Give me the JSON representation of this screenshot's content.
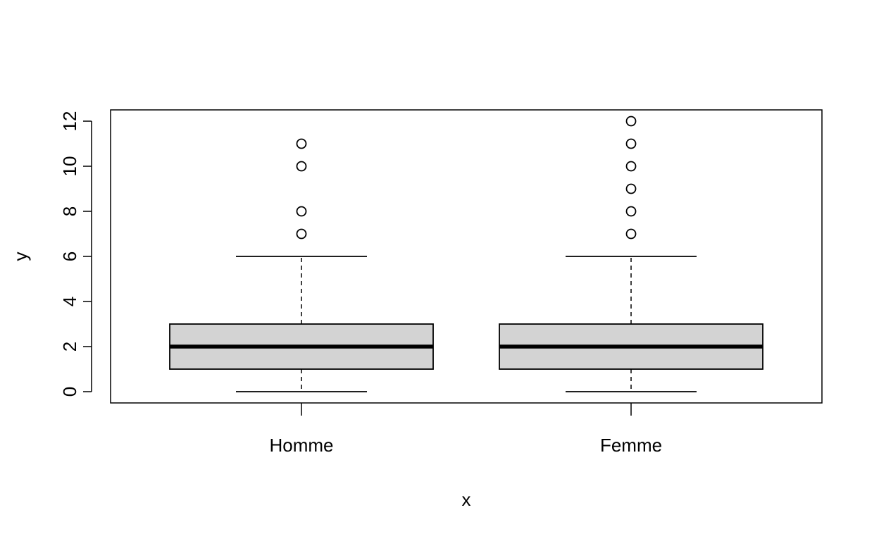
{
  "chart_data": {
    "type": "boxplot",
    "xlabel": "x",
    "ylabel": "y",
    "ylim": [
      0,
      12
    ],
    "yticks": [
      "0",
      "2",
      "4",
      "6",
      "8",
      "10",
      "12"
    ],
    "categories": [
      "Homme",
      "Femme"
    ],
    "boxes": [
      {
        "category": "Homme",
        "whisker_low": 0,
        "q1": 1,
        "median": 2,
        "q3": 3,
        "whisker_high": 6,
        "outliers": [
          7,
          8,
          10,
          11
        ]
      },
      {
        "category": "Femme",
        "whisker_low": 0,
        "q1": 1,
        "median": 2,
        "q3": 3,
        "whisker_high": 6,
        "outliers": [
          7,
          8,
          9,
          10,
          11,
          12
        ]
      }
    ],
    "box_fill": "#d3d3d3",
    "line_color": "#000000",
    "grid": false
  }
}
